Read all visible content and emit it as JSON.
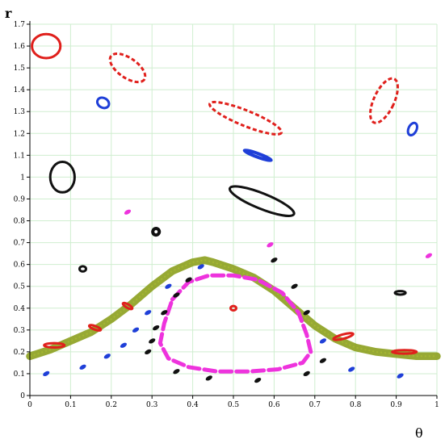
{
  "chart_data": {
    "type": "scatter",
    "title": "",
    "xlabel": "θ",
    "ylabel": "r",
    "xlim": [
      0,
      1
    ],
    "ylim": [
      0,
      1.7
    ],
    "grid": true,
    "legend": "none",
    "xticks": [
      0,
      0.1,
      0.2,
      0.3,
      0.4,
      0.5,
      0.6,
      0.7,
      0.8,
      0.9,
      1
    ],
    "xtick_labels": [
      "0",
      "0.1",
      "0.2",
      "0.3",
      "0.4",
      "0.5",
      "0.6",
      "0.7",
      "0.8",
      "0.9",
      "1"
    ],
    "yticks": [
      0,
      0.1,
      0.2,
      0.3,
      0.4,
      0.5,
      0.6,
      0.7,
      0.8,
      0.9,
      1,
      1.1,
      1.2,
      1.3,
      1.4,
      1.5,
      1.6,
      1.7
    ],
    "ytick_labels": [
      "0",
      "0.1",
      "0.2",
      "0.3",
      "0.4",
      "0.5",
      "0.6",
      "0.7",
      "0.8",
      "0.9",
      "1",
      "1.1",
      "1.2",
      "1.3",
      "1.4",
      "1.5",
      "1.6",
      "1.7"
    ],
    "colors": {
      "background": "#ffffff",
      "grid": "#cfeecf",
      "axis": "#000000",
      "red": "#e0201c",
      "blue": "#1f3fd8",
      "black": "#111111",
      "magenta": "#ee33dd",
      "olive": "#8ca01e"
    },
    "series": [
      {
        "color": "olive",
        "kind": "chaotic-band",
        "width": 0.035,
        "points": [
          [
            0,
            0.18
          ],
          [
            0.05,
            0.21
          ],
          [
            0.1,
            0.25
          ],
          [
            0.15,
            0.29
          ],
          [
            0.2,
            0.35
          ],
          [
            0.25,
            0.42
          ],
          [
            0.3,
            0.5
          ],
          [
            0.35,
            0.57
          ],
          [
            0.4,
            0.61
          ],
          [
            0.43,
            0.62
          ],
          [
            0.45,
            0.61
          ],
          [
            0.5,
            0.58
          ],
          [
            0.55,
            0.54
          ],
          [
            0.6,
            0.48
          ],
          [
            0.65,
            0.4
          ],
          [
            0.7,
            0.32
          ],
          [
            0.75,
            0.26
          ],
          [
            0.8,
            0.22
          ],
          [
            0.85,
            0.2
          ],
          [
            0.9,
            0.19
          ],
          [
            0.95,
            0.18
          ],
          [
            1,
            0.18
          ]
        ]
      },
      {
        "color": "red",
        "kind": "islands",
        "islands": [
          {
            "cx": 0.04,
            "cy": 1.6,
            "rx": 0.035,
            "ry": 0.055,
            "rot": 0,
            "style": "solid"
          },
          {
            "cx": 0.24,
            "cy": 1.5,
            "rx": 0.05,
            "ry": 0.045,
            "rot": 35,
            "style": "dashed"
          },
          {
            "cx": 0.53,
            "cy": 1.27,
            "rx": 0.095,
            "ry": 0.035,
            "rot": 22,
            "style": "dashed"
          },
          {
            "cx": 0.87,
            "cy": 1.35,
            "rx": 0.025,
            "ry": 0.11,
            "rot": 25,
            "style": "dashed"
          },
          {
            "cx": 0.06,
            "cy": 0.23,
            "rx": 0.025,
            "ry": 0.01,
            "rot": 0,
            "style": "solid"
          },
          {
            "cx": 0.16,
            "cy": 0.31,
            "rx": 0.015,
            "ry": 0.008,
            "rot": 20,
            "style": "solid"
          },
          {
            "cx": 0.24,
            "cy": 0.41,
            "rx": 0.013,
            "ry": 0.008,
            "rot": 30,
            "style": "solid"
          },
          {
            "cx": 0.5,
            "cy": 0.4,
            "rx": 0.007,
            "ry": 0.01,
            "rot": 0,
            "style": "solid"
          },
          {
            "cx": 0.77,
            "cy": 0.27,
            "rx": 0.025,
            "ry": 0.01,
            "rot": -15,
            "style": "solid"
          },
          {
            "cx": 0.92,
            "cy": 0.2,
            "rx": 0.03,
            "ry": 0.008,
            "rot": 0,
            "style": "solid"
          }
        ]
      },
      {
        "color": "blue",
        "kind": "islands",
        "islands": [
          {
            "cx": 0.18,
            "cy": 1.34,
            "rx": 0.015,
            "ry": 0.022,
            "rot": 30,
            "style": "solid"
          },
          {
            "cx": 0.56,
            "cy": 1.1,
            "rx": 0.035,
            "ry": 0.008,
            "rot": 20,
            "style": "thick"
          },
          {
            "cx": 0.94,
            "cy": 1.22,
            "rx": 0.01,
            "ry": 0.03,
            "rot": 25,
            "style": "solid"
          }
        ]
      },
      {
        "color": "blue",
        "kind": "dashes",
        "points": [
          [
            0.04,
            0.1
          ],
          [
            0.13,
            0.13
          ],
          [
            0.19,
            0.18
          ],
          [
            0.23,
            0.23
          ],
          [
            0.26,
            0.3
          ],
          [
            0.29,
            0.38
          ],
          [
            0.34,
            0.5
          ],
          [
            0.42,
            0.59
          ],
          [
            0.72,
            0.25
          ],
          [
            0.79,
            0.12
          ],
          [
            0.91,
            0.09
          ]
        ]
      },
      {
        "color": "black",
        "kind": "islands",
        "islands": [
          {
            "cx": 0.08,
            "cy": 1.0,
            "rx": 0.03,
            "ry": 0.07,
            "rot": 0,
            "style": "solid"
          },
          {
            "cx": 0.57,
            "cy": 0.89,
            "rx": 0.085,
            "ry": 0.035,
            "rot": 22,
            "style": "solid"
          },
          {
            "cx": 0.31,
            "cy": 0.75,
            "rx": 0.008,
            "ry": 0.015,
            "rot": 25,
            "style": "thick"
          },
          {
            "cx": 0.13,
            "cy": 0.58,
            "rx": 0.008,
            "ry": 0.012,
            "rot": 0,
            "style": "solid"
          },
          {
            "cx": 0.91,
            "cy": 0.47,
            "rx": 0.013,
            "ry": 0.008,
            "rot": 0,
            "style": "solid"
          }
        ]
      },
      {
        "color": "black",
        "kind": "dashes",
        "points": [
          [
            0.29,
            0.2
          ],
          [
            0.3,
            0.25
          ],
          [
            0.31,
            0.31
          ],
          [
            0.33,
            0.38
          ],
          [
            0.36,
            0.46
          ],
          [
            0.39,
            0.53
          ],
          [
            0.36,
            0.11
          ],
          [
            0.44,
            0.08
          ],
          [
            0.56,
            0.07
          ],
          [
            0.68,
            0.1
          ],
          [
            0.72,
            0.16
          ],
          [
            0.6,
            0.62
          ],
          [
            0.65,
            0.5
          ],
          [
            0.68,
            0.38
          ]
        ]
      },
      {
        "color": "magenta",
        "kind": "orbit",
        "points": [
          [
            0.35,
            0.44
          ],
          [
            0.39,
            0.52
          ],
          [
            0.44,
            0.55
          ],
          [
            0.5,
            0.55
          ],
          [
            0.56,
            0.53
          ],
          [
            0.62,
            0.47
          ],
          [
            0.66,
            0.38
          ],
          [
            0.68,
            0.28
          ],
          [
            0.69,
            0.2
          ],
          [
            0.67,
            0.15
          ],
          [
            0.61,
            0.12
          ],
          [
            0.54,
            0.11
          ],
          [
            0.46,
            0.11
          ],
          [
            0.39,
            0.13
          ],
          [
            0.34,
            0.17
          ],
          [
            0.32,
            0.24
          ],
          [
            0.33,
            0.33
          ],
          [
            0.35,
            0.44
          ]
        ]
      },
      {
        "color": "magenta",
        "kind": "dashes",
        "points": [
          [
            0.24,
            0.84
          ],
          [
            0.59,
            0.69
          ],
          [
            0.98,
            0.64
          ]
        ]
      }
    ]
  }
}
